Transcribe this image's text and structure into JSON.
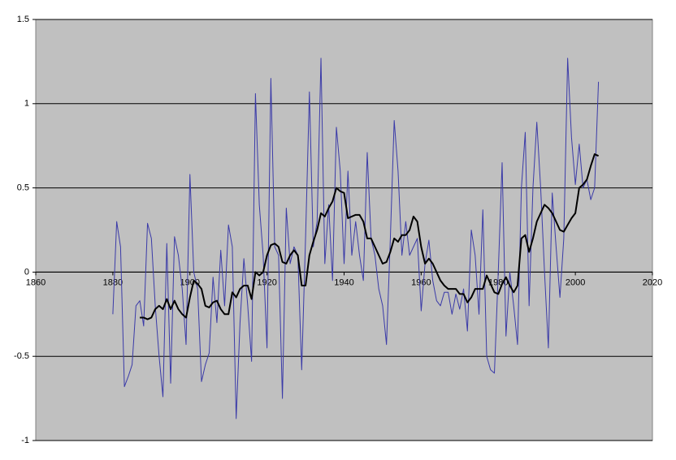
{
  "chart_data": {
    "type": "line",
    "x": [
      1880,
      1881,
      1882,
      1883,
      1884,
      1885,
      1886,
      1887,
      1888,
      1889,
      1890,
      1891,
      1892,
      1893,
      1894,
      1895,
      1896,
      1897,
      1898,
      1899,
      1900,
      1901,
      1902,
      1903,
      1904,
      1905,
      1906,
      1907,
      1908,
      1909,
      1910,
      1911,
      1912,
      1913,
      1914,
      1915,
      1916,
      1917,
      1918,
      1919,
      1920,
      1921,
      1922,
      1923,
      1924,
      1925,
      1926,
      1927,
      1928,
      1929,
      1930,
      1931,
      1932,
      1933,
      1934,
      1935,
      1936,
      1937,
      1938,
      1939,
      1940,
      1941,
      1942,
      1943,
      1944,
      1945,
      1946,
      1947,
      1948,
      1949,
      1950,
      1951,
      1952,
      1953,
      1954,
      1955,
      1956,
      1957,
      1958,
      1959,
      1960,
      1961,
      1962,
      1963,
      1964,
      1965,
      1966,
      1967,
      1968,
      1969,
      1970,
      1971,
      1972,
      1973,
      1974,
      1975,
      1976,
      1977,
      1978,
      1979,
      1980,
      1981,
      1982,
      1983,
      1984,
      1985,
      1986,
      1987,
      1988,
      1989,
      1990,
      1991,
      1992,
      1993,
      1994,
      1995,
      1996,
      1997,
      1998,
      1999,
      2000,
      2001,
      2002,
      2003,
      2004,
      2005,
      2006
    ],
    "series": [
      {
        "color": "#3a3aa8",
        "values": [
          -0.25,
          0.3,
          0.15,
          -0.68,
          -0.62,
          -0.55,
          -0.2,
          -0.17,
          -0.32,
          0.29,
          0.2,
          -0.2,
          -0.5,
          -0.74,
          0.17,
          -0.66,
          0.21,
          0.1,
          -0.1,
          -0.43,
          0.58,
          0,
          -0.1,
          -0.65,
          -0.55,
          -0.48,
          -0.03,
          -0.3,
          0.13,
          -0.2,
          0.28,
          0.15,
          -0.87,
          -0.3,
          0.08,
          -0.2,
          -0.53,
          1.06,
          0.4,
          0.1,
          -0.45,
          1.15,
          0.15,
          0.1,
          -0.75,
          0.38,
          0.05,
          0.15,
          0.1,
          -0.58,
          0.2,
          1.07,
          0.15,
          0.3,
          1.27,
          0.05,
          0.4,
          -0.05,
          0.86,
          0.6,
          0.05,
          0.6,
          0.1,
          0.3,
          0.1,
          -0.05,
          0.71,
          0.2,
          0.1,
          -0.1,
          -0.2,
          -0.43,
          0.2,
          0.9,
          0.6,
          0.1,
          0.3,
          0.1,
          0.15,
          0.2,
          -0.23,
          0.05,
          0.19,
          -0.05,
          -0.17,
          -0.2,
          -0.12,
          -0.12,
          -0.25,
          -0.13,
          -0.22,
          -0.1,
          -0.35,
          0.25,
          0.1,
          -0.25,
          0.37,
          -0.5,
          -0.58,
          -0.6,
          0,
          0.65,
          -0.38,
          0,
          -0.2,
          -0.43,
          0.5,
          0.83,
          -0.2,
          0.5,
          0.89,
          0.5,
          0,
          -0.45,
          0.47,
          0.15,
          -0.15,
          0.2,
          1.27,
          0.8,
          0.52,
          0.76,
          0.5,
          0.55,
          0.43,
          0.5,
          1.13
        ]
      },
      {
        "color": "#000000",
        "values": [
          null,
          null,
          null,
          null,
          null,
          null,
          null,
          -0.27,
          -0.27,
          -0.28,
          -0.27,
          -0.22,
          -0.2,
          -0.22,
          -0.16,
          -0.22,
          -0.17,
          -0.22,
          -0.25,
          -0.27,
          -0.15,
          -0.05,
          -0.07,
          -0.1,
          -0.2,
          -0.21,
          -0.18,
          -0.17,
          -0.22,
          -0.25,
          -0.25,
          -0.12,
          -0.15,
          -0.1,
          -0.08,
          -0.08,
          -0.16,
          0,
          -0.02,
          0,
          0.1,
          0.16,
          0.17,
          0.15,
          0.06,
          0.05,
          0.1,
          0.13,
          0.1,
          -0.08,
          -0.08,
          0.1,
          0.18,
          0.25,
          0.35,
          0.33,
          0.38,
          0.42,
          0.5,
          0.48,
          0.47,
          0.32,
          0.33,
          0.34,
          0.34,
          0.3,
          0.2,
          0.2,
          0.15,
          0.1,
          0.05,
          0.06,
          0.12,
          0.2,
          0.18,
          0.22,
          0.22,
          0.25,
          0.33,
          0.3,
          0.15,
          0.05,
          0.08,
          0.05,
          0,
          -0.05,
          -0.08,
          -0.1,
          -0.1,
          -0.1,
          -0.13,
          -0.13,
          -0.18,
          -0.15,
          -0.1,
          -0.1,
          -0.1,
          -0.02,
          -0.07,
          -0.12,
          -0.13,
          -0.07,
          -0.03,
          -0.08,
          -0.12,
          -0.08,
          0.2,
          0.22,
          0.12,
          0.2,
          0.3,
          0.35,
          0.4,
          0.38,
          0.35,
          0.3,
          0.25,
          0.24,
          0.28,
          0.32,
          0.35,
          0.5,
          0.52,
          0.55,
          0.63,
          0.7,
          0.69
        ]
      }
    ],
    "xlim": [
      1860,
      2020
    ],
    "xticks": [
      1860,
      1880,
      1900,
      1920,
      1940,
      1960,
      1980,
      2000,
      2020
    ],
    "ylim": [
      -1,
      1.5
    ],
    "yticks": [
      -1,
      -0.5,
      0,
      0.5,
      1,
      1.5
    ],
    "grid": true,
    "plot_background": "#c0c0c0"
  }
}
